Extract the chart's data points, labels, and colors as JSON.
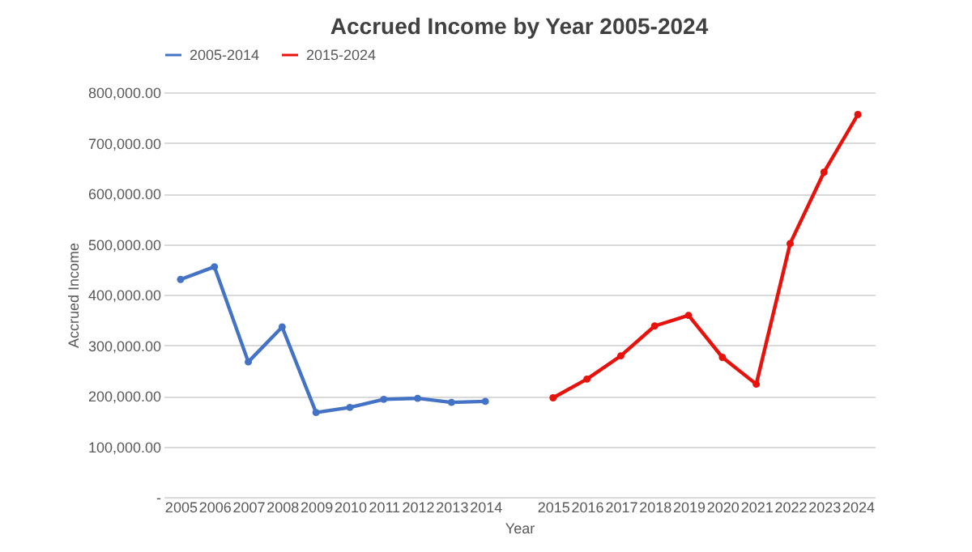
{
  "chart_data": {
    "type": "line",
    "title": "Accrued Income by Year 2005-2024",
    "xlabel": "Year",
    "ylabel": "Accrued Income",
    "categories": [
      "2005",
      "2006",
      "2007",
      "2008",
      "2009",
      "2010",
      "2011",
      "2012",
      "2013",
      "2014",
      null,
      "2015",
      "2016",
      "2017",
      "2018",
      "2019",
      "2020",
      "2021",
      "2022",
      "2023",
      "2024"
    ],
    "series": [
      {
        "name": "2005-2014",
        "color": "#4472c4",
        "values": [
          430000,
          455000,
          267000,
          336000,
          167000,
          177000,
          193000,
          195000,
          187000,
          189000,
          null,
          null,
          null,
          null,
          null,
          null,
          null,
          null,
          null,
          null,
          null
        ]
      },
      {
        "name": "2015-2024",
        "color": "#e8120c",
        "values": [
          null,
          null,
          null,
          null,
          null,
          null,
          null,
          null,
          null,
          null,
          null,
          196000,
          233000,
          279000,
          338000,
          359000,
          276000,
          223000,
          501000,
          642000,
          756000
        ]
      }
    ],
    "ylim": [
      0,
      800000
    ],
    "yticks": [
      {
        "value": 0,
        "label": "-"
      },
      {
        "value": 100000,
        "label": "100,000.00"
      },
      {
        "value": 200000,
        "label": "200,000.00"
      },
      {
        "value": 300000,
        "label": "300,000.00"
      },
      {
        "value": 400000,
        "label": "400,000.00"
      },
      {
        "value": 500000,
        "label": "500,000.00"
      },
      {
        "value": 600000,
        "label": "600,000.00"
      },
      {
        "value": 700000,
        "label": "700,000.00"
      },
      {
        "value": 800000,
        "label": "800,000.00"
      }
    ],
    "grid": "y",
    "legend": "top",
    "marker": "circle",
    "line_style": "solid"
  }
}
